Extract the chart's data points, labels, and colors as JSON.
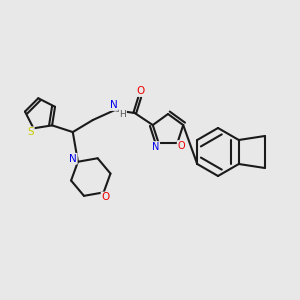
{
  "background_color": "#e8e8e8",
  "bond_color": "#1a1a1a",
  "atom_colors": {
    "S": "#cccc00",
    "N": "#0000ee",
    "O": "#ee0000",
    "C": "#1a1a1a",
    "H": "#555555"
  },
  "figsize": [
    3.0,
    3.0
  ],
  "dpi": 100
}
